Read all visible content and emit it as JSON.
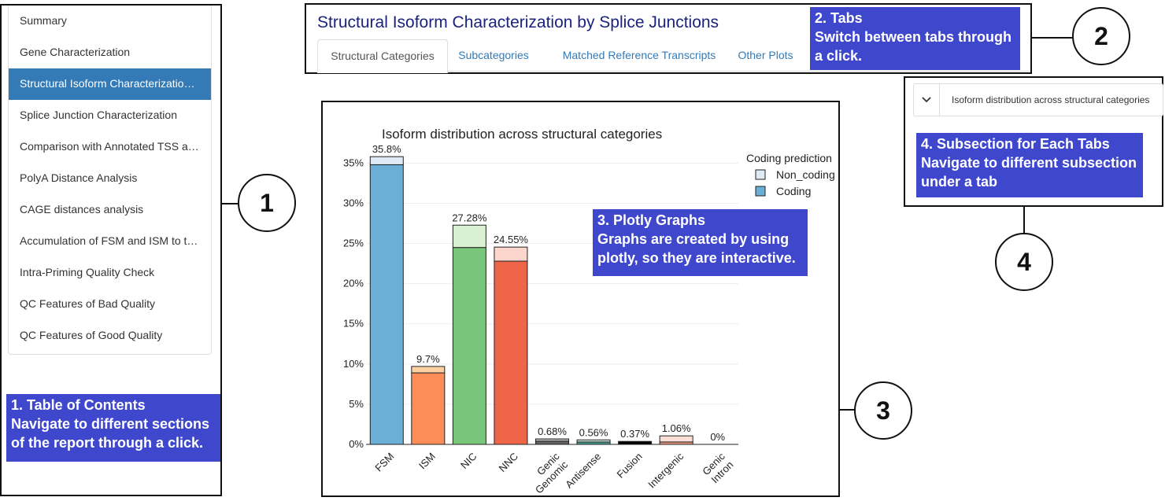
{
  "toc": {
    "items": [
      "Summary",
      "Gene Characterization",
      "Structural Isoform Characterization …",
      "Splice Junction Characterization",
      "Comparison with Annotated TSS an…",
      "PolyA Distance Analysis",
      "CAGE distances analysis",
      "Accumulation of FSM and ISM to th…",
      "Intra-Priming Quality Check",
      "QC Features of Bad Quality",
      "QC Features of Good Quality"
    ],
    "active_index": 2
  },
  "tabs_panel": {
    "title": "Structural Isoform Characterization by Splice Junctions",
    "tabs": [
      "Structural Categories",
      "Subcategories",
      "Matched Reference Transcripts",
      "Other Plots"
    ],
    "active_index": 0
  },
  "subsection": {
    "chevron": "chevron-down-icon",
    "label": "Isoform distribution across structural categories"
  },
  "callouts": {
    "c1": "1. Table of Contents\nNavigate to different sections\nof the report through a click.",
    "c2": "2. Tabs\nSwitch between tabs through\na click.",
    "c3": "3. Plotly Graphs\nGraphs are created by using\nplotly, so they are interactive.",
    "c4": "4. Subsection for Each Tabs\nNavigate to different subsection\nunder a tab"
  },
  "circle_numbers": [
    "1",
    "2",
    "3",
    "4"
  ],
  "colors": {
    "accent": "#337ab7",
    "callout_bg": "#3f48cc",
    "title": "#1a237e"
  },
  "chart_data": {
    "type": "bar",
    "title": "Isoform distribution across structural categories",
    "categories": [
      "FSM",
      "ISM",
      "NIC",
      "NNC",
      "Genic\nGenomic",
      "Antisense",
      "Fusion",
      "Intergenic",
      "Genic\nIntron"
    ],
    "series": [
      {
        "name": "Coding",
        "values": [
          34.8,
          8.9,
          24.5,
          22.8,
          0.4,
          0.3,
          0.37,
          0.3,
          0
        ],
        "colors": [
          "#6baed6",
          "#fc8d59",
          "#78c679",
          "#ef6548",
          "#636363",
          "#4a9a8f",
          "#000000",
          "#e9967a",
          "#cccccc"
        ]
      },
      {
        "name": "Non_coding",
        "values": [
          1.0,
          0.8,
          2.78,
          1.75,
          0.28,
          0.26,
          0,
          0.76,
          0
        ],
        "colors": [
          "#deebf7",
          "#fdd0a2",
          "#d9f0d3",
          "#fcd5cc",
          "#bdbdbd",
          "#c7e9e0",
          "#cccccc",
          "#fce0d8",
          "#eeeeee"
        ]
      }
    ],
    "totals_labels": [
      "35.8%",
      "9.7%",
      "27.28%",
      "24.55%",
      "0.68%",
      "0.56%",
      "0.37%",
      "1.06%",
      "0%"
    ],
    "y_ticks": [
      "0%",
      "5%",
      "10%",
      "15%",
      "20%",
      "25%",
      "30%",
      "35%"
    ],
    "ylim": [
      0,
      36.7
    ],
    "legend_title": "Coding prediction",
    "legend_items": [
      {
        "name": "Non_coding",
        "color": "#deebf7"
      },
      {
        "name": "Coding",
        "color": "#6baed6"
      }
    ],
    "legend_position": "top-right",
    "grid": true
  }
}
